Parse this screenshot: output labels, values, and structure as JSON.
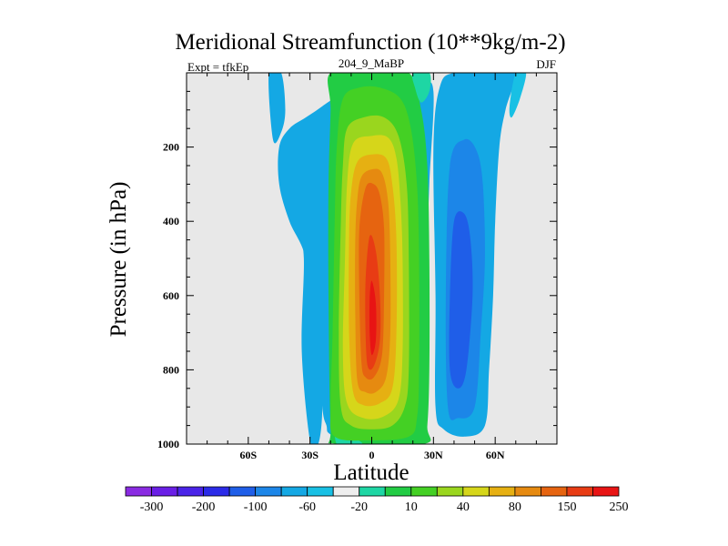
{
  "chart_data": {
    "type": "heatmap",
    "title": "Meridional Streamfunction (10**9kg/m-2)",
    "subtitle_left": "Expt = tfkEp",
    "subtitle_center": "204_9_MaBP",
    "subtitle_right": "DJF",
    "xlabel": "Latitude",
    "ylabel": "Pressure (in hPa)",
    "xlim": [
      -90,
      90
    ],
    "ylim": [
      0,
      1000
    ],
    "y_inverted": true,
    "x_ticks": [
      {
        "value": -60,
        "label": "60S"
      },
      {
        "value": -30,
        "label": "30S"
      },
      {
        "value": 0,
        "label": "0"
      },
      {
        "value": 30,
        "label": "30N"
      },
      {
        "value": 60,
        "label": "60N"
      }
    ],
    "y_ticks": [
      {
        "value": 200,
        "label": "200"
      },
      {
        "value": 400,
        "label": "400"
      },
      {
        "value": 600,
        "label": "600"
      },
      {
        "value": 800,
        "label": "800"
      },
      {
        "value": 1000,
        "label": "1000"
      }
    ],
    "background_color": "#e8e8e8",
    "colorbar": {
      "colors": [
        "#8a2be2",
        "#6a1fe6",
        "#4a24e8",
        "#2b2be8",
        "#1f5ee8",
        "#1c86e8",
        "#14a8e4",
        "#18c0e4",
        "#eeeeee",
        "#1ed6a4",
        "#22cc44",
        "#44d024",
        "#9ad61e",
        "#d6d61a",
        "#e6b012",
        "#e68a10",
        "#e66410",
        "#e83c14",
        "#e81414"
      ],
      "labels": [
        {
          "after_box": 1,
          "text": "-300"
        },
        {
          "after_box": 3,
          "text": "-200"
        },
        {
          "after_box": 5,
          "text": "-100"
        },
        {
          "after_box": 7,
          "text": "-60"
        },
        {
          "after_box": 9,
          "text": "-20"
        },
        {
          "after_box": 11,
          "text": "10"
        },
        {
          "after_box": 13,
          "text": "40"
        },
        {
          "after_box": 15,
          "text": "80"
        },
        {
          "after_box": 17,
          "text": "150"
        },
        {
          "after_box": 19,
          "text": "250"
        }
      ]
    },
    "regions": [
      {
        "level": 6,
        "color": "#14a8e4",
        "points": [
          [
            -11,
            0
          ],
          [
            4,
            0
          ],
          [
            12,
            20
          ],
          [
            24,
            30
          ],
          [
            30,
            50
          ],
          [
            28,
            300
          ],
          [
            26,
            600
          ],
          [
            24,
            800
          ],
          [
            22,
            900
          ],
          [
            20,
            975
          ],
          [
            15,
            990
          ],
          [
            0,
            995
          ],
          [
            -15,
            985
          ],
          [
            -21,
            970
          ],
          [
            -22,
            950
          ],
          [
            -24,
            900
          ],
          [
            -26,
            700
          ],
          [
            -32,
            500
          ],
          [
            -40,
            400
          ],
          [
            -45,
            300
          ],
          [
            -45,
            200
          ],
          [
            -40,
            150
          ],
          [
            -32,
            120
          ],
          [
            -24,
            90
          ],
          [
            -12,
            40
          ]
        ]
      },
      {
        "level": 6,
        "color": "#14a8e4",
        "points": [
          [
            -50,
            0
          ],
          [
            -44,
            0
          ],
          [
            -42,
            100
          ],
          [
            -44,
            160
          ],
          [
            -48,
            180
          ]
        ]
      },
      {
        "level": 6,
        "color": "#14a8e4",
        "points": [
          [
            -36,
            400
          ],
          [
            -32,
            430
          ],
          [
            -26,
            500
          ],
          [
            -25,
            700
          ],
          [
            -24,
            900
          ],
          [
            -26,
            1000
          ],
          [
            -30,
            990
          ],
          [
            -34,
            750
          ],
          [
            -33,
            500
          ]
        ]
      },
      {
        "level": 6,
        "color": "#14a8e4",
        "points": [
          [
            33,
            40
          ],
          [
            40,
            0
          ],
          [
            60,
            0
          ],
          [
            70,
            0
          ],
          [
            65,
            100
          ],
          [
            62,
            200
          ],
          [
            60,
            400
          ],
          [
            59,
            600
          ],
          [
            57,
            800
          ],
          [
            55,
            950
          ],
          [
            45,
            980
          ],
          [
            35,
            960
          ],
          [
            31,
            900
          ],
          [
            31,
            600
          ],
          [
            30,
            200
          ]
        ]
      },
      {
        "level": 5,
        "color": "#1c86e8",
        "points": [
          [
            38,
            250
          ],
          [
            45,
            180
          ],
          [
            51,
            210
          ],
          [
            54,
            300
          ],
          [
            55,
            500
          ],
          [
            53,
            700
          ],
          [
            50,
            900
          ],
          [
            42,
            930
          ],
          [
            37,
            900
          ],
          [
            36,
            600
          ]
        ]
      },
      {
        "level": 4,
        "color": "#1f5ee8",
        "points": [
          [
            40,
            400
          ],
          [
            45,
            380
          ],
          [
            48,
            450
          ],
          [
            49,
            600
          ],
          [
            46,
            800
          ],
          [
            42,
            850
          ],
          [
            38,
            800
          ],
          [
            38,
            600
          ]
        ]
      },
      {
        "level": 6,
        "color": "#18c0e4",
        "points": [
          [
            70,
            0
          ],
          [
            75,
            0
          ],
          [
            72,
            70
          ],
          [
            68,
            120
          ],
          [
            67,
            90
          ]
        ]
      },
      {
        "level": 10,
        "color": "#22cc44",
        "points": [
          [
            -20,
            0
          ],
          [
            0,
            0
          ],
          [
            18,
            0
          ],
          [
            24,
            100
          ],
          [
            27,
            250
          ],
          [
            28,
            500
          ],
          [
            28,
            800
          ],
          [
            27,
            950
          ],
          [
            25,
            1000
          ],
          [
            -17,
            1000
          ],
          [
            -20,
            950
          ],
          [
            -21,
            600
          ],
          [
            -21,
            300
          ],
          [
            -20,
            100
          ]
        ]
      },
      {
        "level": 9,
        "color": "#1ed6a4",
        "points": [
          [
            -17,
            900
          ],
          [
            -14,
            920
          ],
          [
            -8,
            980
          ],
          [
            -5,
            1000
          ],
          [
            -17,
            1000
          ]
        ]
      },
      {
        "level": 9,
        "color": "#1ed6a4",
        "points": [
          [
            20,
            0
          ],
          [
            28,
            0
          ],
          [
            28,
            50
          ],
          [
            24,
            80
          ],
          [
            21,
            40
          ]
        ]
      },
      {
        "level": 11,
        "color": "#44d024",
        "points": [
          [
            -14,
            70
          ],
          [
            -6,
            40
          ],
          [
            4,
            40
          ],
          [
            14,
            70
          ],
          [
            19,
            150
          ],
          [
            22,
            300
          ],
          [
            23,
            500
          ],
          [
            23,
            800
          ],
          [
            22,
            930
          ],
          [
            18,
            980
          ],
          [
            0,
            990
          ],
          [
            -18,
            980
          ],
          [
            -20,
            900
          ],
          [
            -19,
            700
          ],
          [
            -18,
            400
          ],
          [
            -17,
            200
          ]
        ]
      },
      {
        "level": 12,
        "color": "#9ad61e",
        "points": [
          [
            -12,
            150
          ],
          [
            -4,
            120
          ],
          [
            6,
            120
          ],
          [
            13,
            170
          ],
          [
            17,
            300
          ],
          [
            18,
            500
          ],
          [
            18,
            800
          ],
          [
            16,
            900
          ],
          [
            10,
            950
          ],
          [
            0,
            960
          ],
          [
            -10,
            950
          ],
          [
            -15,
            900
          ],
          [
            -16,
            700
          ],
          [
            -15,
            400
          ],
          [
            -14,
            250
          ]
        ]
      },
      {
        "level": 13,
        "color": "#d6d61a",
        "points": [
          [
            -9,
            190
          ],
          [
            0,
            170
          ],
          [
            8,
            175
          ],
          [
            12,
            230
          ],
          [
            14,
            350
          ],
          [
            15,
            500
          ],
          [
            15,
            750
          ],
          [
            13,
            880
          ],
          [
            6,
            925
          ],
          [
            -4,
            930
          ],
          [
            -12,
            890
          ],
          [
            -14,
            750
          ],
          [
            -13,
            500
          ],
          [
            -12,
            300
          ]
        ]
      },
      {
        "level": 14,
        "color": "#e6b012",
        "points": [
          [
            -7,
            240
          ],
          [
            0,
            220
          ],
          [
            7,
            230
          ],
          [
            10,
            300
          ],
          [
            12,
            450
          ],
          [
            12,
            700
          ],
          [
            10,
            850
          ],
          [
            4,
            890
          ],
          [
            -4,
            895
          ],
          [
            -9,
            860
          ],
          [
            -11,
            700
          ],
          [
            -11,
            450
          ],
          [
            -10,
            320
          ]
        ]
      },
      {
        "level": 15,
        "color": "#e68a10",
        "points": [
          [
            -5,
            280
          ],
          [
            0,
            260
          ],
          [
            5,
            270
          ],
          [
            8,
            350
          ],
          [
            9,
            500
          ],
          [
            9,
            700
          ],
          [
            7,
            820
          ],
          [
            2,
            860
          ],
          [
            -3,
            860
          ],
          [
            -7,
            830
          ],
          [
            -8,
            650
          ],
          [
            -8,
            450
          ],
          [
            -7,
            340
          ]
        ]
      },
      {
        "level": 16,
        "color": "#e66410",
        "points": [
          [
            -3,
            310
          ],
          [
            1,
            300
          ],
          [
            4,
            330
          ],
          [
            6,
            420
          ],
          [
            6,
            600
          ],
          [
            5,
            760
          ],
          [
            1,
            820
          ],
          [
            -3,
            820
          ],
          [
            -5,
            780
          ],
          [
            -6,
            600
          ],
          [
            -6,
            420
          ]
        ]
      },
      {
        "level": 17,
        "color": "#e83c14",
        "points": [
          [
            -1,
            440
          ],
          [
            2,
            480
          ],
          [
            4,
            600
          ],
          [
            4,
            720
          ],
          [
            1,
            790
          ],
          [
            -2,
            790
          ],
          [
            -3,
            700
          ],
          [
            -3,
            560
          ]
        ]
      },
      {
        "level": 18,
        "color": "#e81414",
        "points": [
          [
            0,
            560
          ],
          [
            2,
            620
          ],
          [
            2,
            720
          ],
          [
            0,
            760
          ],
          [
            -1,
            700
          ],
          [
            -1,
            610
          ]
        ]
      }
    ]
  }
}
